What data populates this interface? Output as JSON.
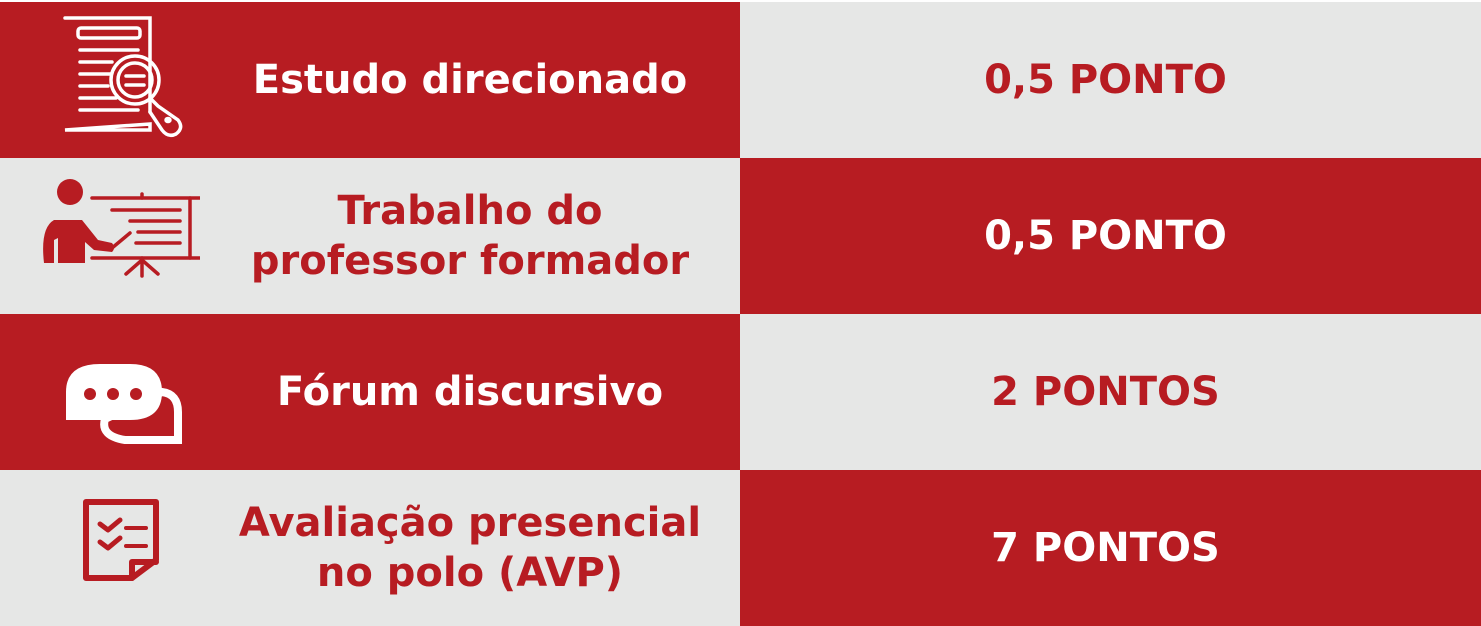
{
  "colors": {
    "red": "#b71c22",
    "gray": "#e6e7e6",
    "white": "#ffffff"
  },
  "rows": [
    {
      "icon": "document-search-icon",
      "label": "Estudo direcionado",
      "points": "0,5 PONTO"
    },
    {
      "icon": "teacher-presentation-icon",
      "label": "Trabalho do professor formador",
      "points": "0,5 PONTO"
    },
    {
      "icon": "chat-bubbles-icon",
      "label": "Fórum discursivo",
      "points": "2 PONTOS"
    },
    {
      "icon": "checklist-icon",
      "label": "Avaliação presencial no polo (AVP)",
      "points": "7 PONTOS"
    }
  ]
}
